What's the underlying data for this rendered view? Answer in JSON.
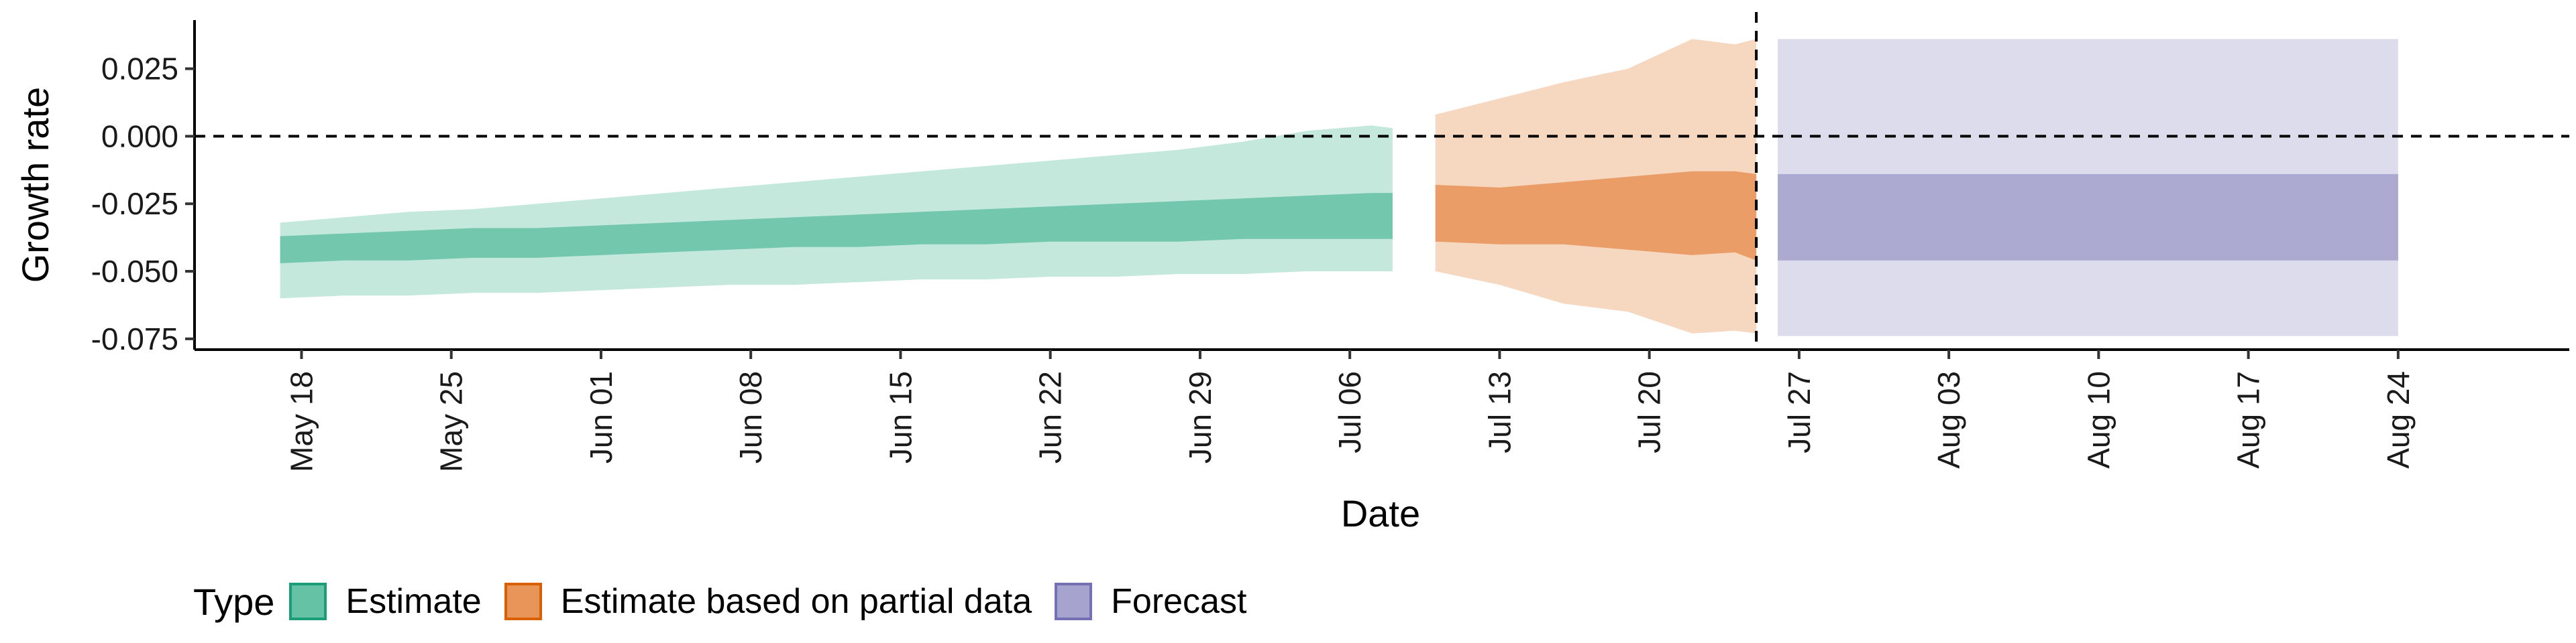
{
  "chart_data": {
    "type": "area",
    "title": "",
    "xlabel": "Date",
    "ylabel": "Growth rate",
    "x_range": [
      "2021-05-13",
      "2021-09-01"
    ],
    "ylim": [
      -0.079,
      0.043
    ],
    "y_ticks": [
      {
        "value": 0.025,
        "label": "0.025"
      },
      {
        "value": 0.0,
        "label": "0.000"
      },
      {
        "value": -0.025,
        "label": "-0.025"
      },
      {
        "value": -0.05,
        "label": "-0.050"
      },
      {
        "value": -0.075,
        "label": "-0.075"
      }
    ],
    "x_ticks": [
      {
        "date": "2021-05-18",
        "label": "May 18"
      },
      {
        "date": "2021-05-25",
        "label": "May 25"
      },
      {
        "date": "2021-06-01",
        "label": "Jun 01"
      },
      {
        "date": "2021-06-08",
        "label": "Jun 08"
      },
      {
        "date": "2021-06-15",
        "label": "Jun 15"
      },
      {
        "date": "2021-06-22",
        "label": "Jun 22"
      },
      {
        "date": "2021-06-29",
        "label": "Jun 29"
      },
      {
        "date": "2021-07-06",
        "label": "Jul 06"
      },
      {
        "date": "2021-07-13",
        "label": "Jul 13"
      },
      {
        "date": "2021-07-20",
        "label": "Jul 20"
      },
      {
        "date": "2021-07-27",
        "label": "Jul 27"
      },
      {
        "date": "2021-08-03",
        "label": "Aug 03"
      },
      {
        "date": "2021-08-10",
        "label": "Aug 10"
      },
      {
        "date": "2021-08-17",
        "label": "Aug 17"
      },
      {
        "date": "2021-08-24",
        "label": "Aug 24"
      }
    ],
    "reference_lines": [
      {
        "axis": "y",
        "value": 0.0,
        "style": "dashed"
      },
      {
        "axis": "x",
        "date": "2021-07-25",
        "style": "dashed"
      }
    ],
    "legend": {
      "title": "Type",
      "position": "bottom-left"
    },
    "series": [
      {
        "name": "Estimate",
        "fill": "#66c2a5",
        "border": "#1b9e77",
        "x": [
          "2021-05-17",
          "2021-05-20",
          "2021-05-23",
          "2021-05-26",
          "2021-05-29",
          "2021-06-01",
          "2021-06-04",
          "2021-06-07",
          "2021-06-10",
          "2021-06-13",
          "2021-06-16",
          "2021-06-19",
          "2021-06-22",
          "2021-06-25",
          "2021-06-28",
          "2021-07-01",
          "2021-07-04",
          "2021-07-07",
          "2021-07-08"
        ],
        "lower_90": [
          -0.06,
          -0.059,
          -0.059,
          -0.058,
          -0.058,
          -0.057,
          -0.056,
          -0.055,
          -0.055,
          -0.054,
          -0.053,
          -0.053,
          -0.052,
          -0.052,
          -0.051,
          -0.051,
          -0.05,
          -0.05,
          -0.05
        ],
        "upper_90": [
          -0.032,
          -0.03,
          -0.028,
          -0.027,
          -0.025,
          -0.023,
          -0.021,
          -0.019,
          -0.017,
          -0.015,
          -0.013,
          -0.011,
          -0.009,
          -0.007,
          -0.005,
          -0.002,
          0.002,
          0.004,
          0.003
        ],
        "lower_50": [
          -0.047,
          -0.046,
          -0.046,
          -0.045,
          -0.045,
          -0.044,
          -0.043,
          -0.042,
          -0.041,
          -0.041,
          -0.04,
          -0.04,
          -0.039,
          -0.039,
          -0.039,
          -0.038,
          -0.038,
          -0.038,
          -0.038
        ],
        "upper_50": [
          -0.037,
          -0.036,
          -0.035,
          -0.034,
          -0.034,
          -0.033,
          -0.032,
          -0.031,
          -0.03,
          -0.029,
          -0.028,
          -0.027,
          -0.026,
          -0.025,
          -0.024,
          -0.023,
          -0.022,
          -0.021,
          -0.021
        ]
      },
      {
        "name": "Estimate based on partial data",
        "fill": "#e8955a",
        "border": "#d95f02",
        "x": [
          "2021-07-10",
          "2021-07-13",
          "2021-07-16",
          "2021-07-19",
          "2021-07-22",
          "2021-07-24",
          "2021-07-25"
        ],
        "lower_90": [
          -0.05,
          -0.055,
          -0.062,
          -0.065,
          -0.073,
          -0.072,
          -0.073
        ],
        "upper_90": [
          0.008,
          0.014,
          0.02,
          0.025,
          0.036,
          0.034,
          0.036
        ],
        "lower_50": [
          -0.039,
          -0.04,
          -0.04,
          -0.042,
          -0.044,
          -0.043,
          -0.046
        ],
        "upper_50": [
          -0.018,
          -0.019,
          -0.017,
          -0.015,
          -0.013,
          -0.013,
          -0.014
        ]
      },
      {
        "name": "Forecast",
        "fill": "#a6a3ce",
        "border": "#7570b3",
        "x": [
          "2021-07-26",
          "2021-08-24"
        ],
        "lower_90": [
          -0.074,
          -0.074
        ],
        "upper_90": [
          0.036,
          0.036
        ],
        "lower_50": [
          -0.046,
          -0.046
        ],
        "upper_50": [
          -0.014,
          -0.014
        ]
      }
    ]
  }
}
